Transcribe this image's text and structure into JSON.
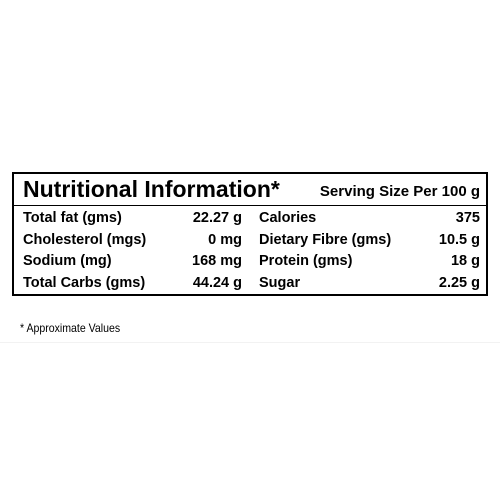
{
  "header": {
    "title": "Nutritional Information*",
    "serving": "Serving Size Per 100 g"
  },
  "table": {
    "rows": [
      [
        "Total fat (gms)",
        "22.27 g",
        "Calories",
        "375"
      ],
      [
        "Cholesterol (mgs)",
        "0 mg",
        "Dietary Fibre (gms)",
        "10.5 g"
      ],
      [
        "Sodium (mg)",
        "168 mg",
        "Protein (gms)",
        "18 g"
      ],
      [
        "Total Carbs (gms)",
        "44.24 g",
        "Sugar",
        "2.25 g"
      ]
    ]
  },
  "footnote": "* Approximate Values"
}
